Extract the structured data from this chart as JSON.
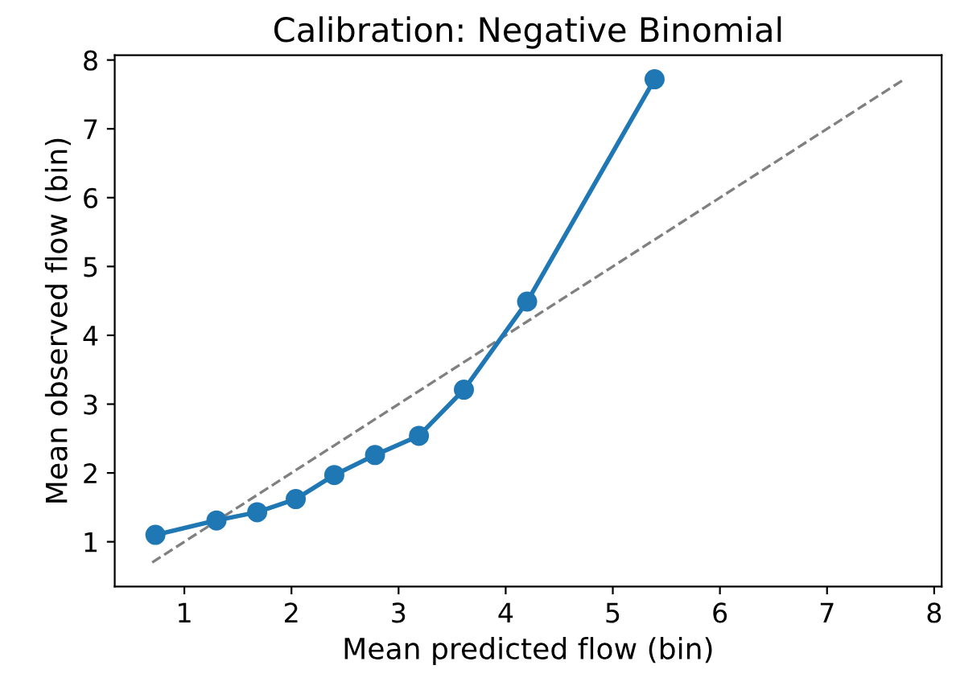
{
  "chart_data": {
    "type": "line",
    "title": "Calibration: Negative Binomial",
    "xlabel": "Mean predicted flow (bin)",
    "ylabel": "Mean observed flow (bin)",
    "series": [
      {
        "color": "#1f77b4",
        "marker": "circle",
        "line_style": "solid",
        "x": [
          0.73,
          1.3,
          1.68,
          2.04,
          2.4,
          2.78,
          3.19,
          3.61,
          4.2,
          5.39
        ],
        "values": [
          1.1,
          1.31,
          1.43,
          1.62,
          1.97,
          2.26,
          2.54,
          3.21,
          4.49,
          7.72
        ]
      },
      {
        "color": "#808080",
        "marker": "none",
        "line_style": "dashed",
        "x": [
          0.7,
          7.72
        ],
        "values": [
          0.7,
          7.72
        ]
      }
    ],
    "xlim": [
      0.35,
      8.07
    ],
    "ylim": [
      0.35,
      8.07
    ],
    "xticks": [
      1,
      2,
      3,
      4,
      5,
      6,
      7,
      8
    ],
    "yticks": [
      1,
      2,
      3,
      4,
      5,
      6,
      7,
      8
    ],
    "grid": false,
    "legend": false
  }
}
